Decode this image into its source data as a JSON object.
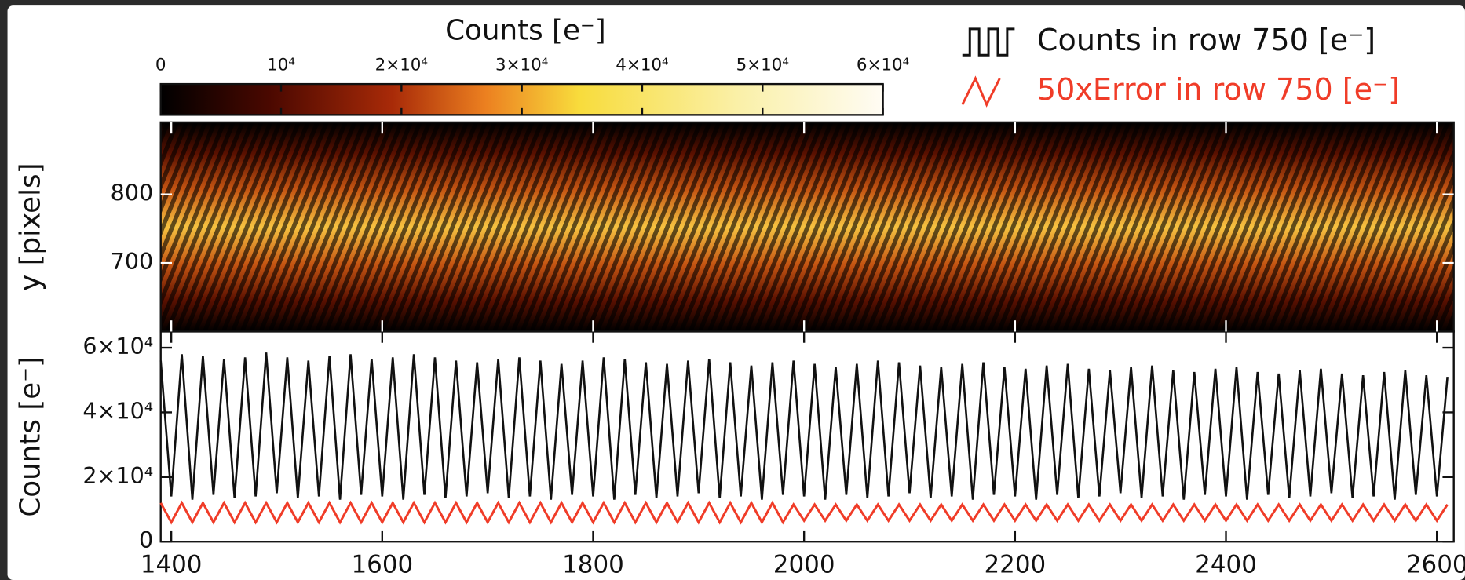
{
  "chart_data": [
    {
      "type": "image",
      "ylabel": "y [pixels]",
      "ylim": [
        600,
        905
      ],
      "yticks": [
        700,
        800
      ],
      "xlim": [
        1390,
        2616
      ],
      "colorbar": {
        "label": "Counts [e⁻]",
        "lim": [
          0,
          60000
        ],
        "ticks": [
          0,
          {
            "value": 10000,
            "label": "10⁴"
          },
          {
            "value": 20000,
            "label": "2×10⁴"
          },
          {
            "value": 30000,
            "label": "3×10⁴"
          },
          {
            "value": 40000,
            "label": "4×10⁴"
          },
          {
            "value": 50000,
            "label": "5×10⁴"
          },
          {
            "value": 60000,
            "label": "6×10⁴"
          }
        ]
      }
    },
    {
      "type": "line",
      "ylabel": "Counts [e⁻]",
      "xlim": [
        1390,
        2616
      ],
      "xticks": [
        1400,
        1600,
        1800,
        2000,
        2200,
        2400,
        2600
      ],
      "ylim": [
        0,
        65000
      ],
      "yticks": [
        0,
        {
          "value": 20000,
          "label": "2×10⁴"
        },
        {
          "value": 40000,
          "label": "4×10⁴"
        },
        {
          "value": 60000,
          "label": "6×10⁴"
        }
      ],
      "legend": "upper right",
      "x": [
        1390,
        1400,
        1410,
        1420,
        1430,
        1440,
        1450,
        1460,
        1470,
        1480,
        1490,
        1500,
        1510,
        1520,
        1530,
        1540,
        1550,
        1560,
        1570,
        1580,
        1590,
        1600,
        1610,
        1620,
        1630,
        1640,
        1650,
        1660,
        1670,
        1680,
        1690,
        1700,
        1710,
        1720,
        1730,
        1740,
        1750,
        1760,
        1770,
        1780,
        1790,
        1800,
        1810,
        1820,
        1830,
        1840,
        1850,
        1860,
        1870,
        1880,
        1890,
        1900,
        1910,
        1920,
        1930,
        1940,
        1950,
        1960,
        1970,
        1980,
        1990,
        2000,
        2010,
        2020,
        2030,
        2040,
        2050,
        2060,
        2070,
        2080,
        2090,
        2100,
        2110,
        2120,
        2130,
        2140,
        2150,
        2160,
        2170,
        2180,
        2190,
        2200,
        2210,
        2220,
        2230,
        2240,
        2250,
        2260,
        2270,
        2280,
        2290,
        2300,
        2310,
        2320,
        2330,
        2340,
        2350,
        2360,
        2370,
        2380,
        2390,
        2400,
        2410,
        2420,
        2430,
        2440,
        2450,
        2460,
        2470,
        2480,
        2490,
        2500,
        2510,
        2520,
        2530,
        2540,
        2550,
        2560,
        2570,
        2580,
        2590,
        2600,
        2610
      ],
      "series": [
        {
          "name": "Counts in row 750 [e⁻]",
          "color": "#111111",
          "values": [
            56000,
            14000,
            58000,
            13000,
            57500,
            14500,
            56500,
            13500,
            57000,
            14000,
            58500,
            15000,
            57000,
            13500,
            56000,
            14000,
            57500,
            13000,
            58000,
            14500,
            56500,
            14000,
            57000,
            13000,
            58000,
            14500,
            57000,
            13500,
            56000,
            14000,
            55500,
            15000,
            56500,
            13500,
            57000,
            14000,
            56000,
            13000,
            55000,
            14500,
            56000,
            14000,
            57000,
            13000,
            56500,
            14500,
            55500,
            13500,
            55000,
            14000,
            56000,
            15000,
            56500,
            13500,
            55500,
            14000,
            54500,
            13000,
            55500,
            14500,
            56000,
            14000,
            55000,
            13000,
            54000,
            14500,
            55000,
            13500,
            56000,
            14000,
            55500,
            15000,
            54500,
            13500,
            54000,
            14000,
            55000,
            13000,
            55500,
            14500,
            54000,
            14000,
            53500,
            13000,
            54500,
            14500,
            55000,
            13500,
            53500,
            14000,
            53000,
            15000,
            54000,
            13500,
            54500,
            14000,
            53000,
            13000,
            52500,
            14500,
            53500,
            14000,
            54000,
            13000,
            52500,
            14500,
            52000,
            13500,
            53000,
            14000,
            53500,
            15000,
            52000,
            13500,
            51500,
            14000,
            52500,
            13000,
            53000,
            14500,
            51500,
            14000,
            51000
          ]
        },
        {
          "name": "50xError in row 750 [e⁻]",
          "color": "#f03c28",
          "values": [
            12000,
            6000,
            12000,
            6000,
            12000,
            6000,
            12000,
            6000,
            12000,
            6000,
            12000,
            6000,
            12000,
            6000,
            12000,
            6000,
            12000,
            6000,
            12000,
            6000,
            12000,
            6000,
            12000,
            6000,
            12000,
            6000,
            12000,
            6000,
            12000,
            6000,
            12000,
            6000,
            12000,
            6000,
            12000,
            6000,
            12000,
            6000,
            12000,
            6000,
            12000,
            6000,
            12000,
            6000,
            12000,
            6000,
            12000,
            6000,
            12000,
            6000,
            12000,
            6000,
            12000,
            6000,
            12000,
            6000,
            12000,
            6000,
            12000,
            6000,
            11500,
            6500,
            11500,
            6500,
            11500,
            6500,
            11500,
            6500,
            11500,
            6500,
            11500,
            6500,
            11500,
            6500,
            11500,
            6500,
            11500,
            6500,
            11500,
            6500,
            11500,
            6500,
            11500,
            6500,
            11500,
            6500,
            11500,
            6500,
            11500,
            6500,
            11500,
            6500,
            11500,
            6500,
            11500,
            6500,
            11500,
            6500,
            11500,
            6500,
            11500,
            6500,
            11500,
            6500,
            11500,
            6500,
            11500,
            6500,
            11500,
            6500,
            11500,
            6500,
            11500,
            6500,
            11500,
            6500,
            11500,
            6500,
            11500,
            6500,
            11500,
            6500,
            11500
          ]
        }
      ]
    }
  ]
}
